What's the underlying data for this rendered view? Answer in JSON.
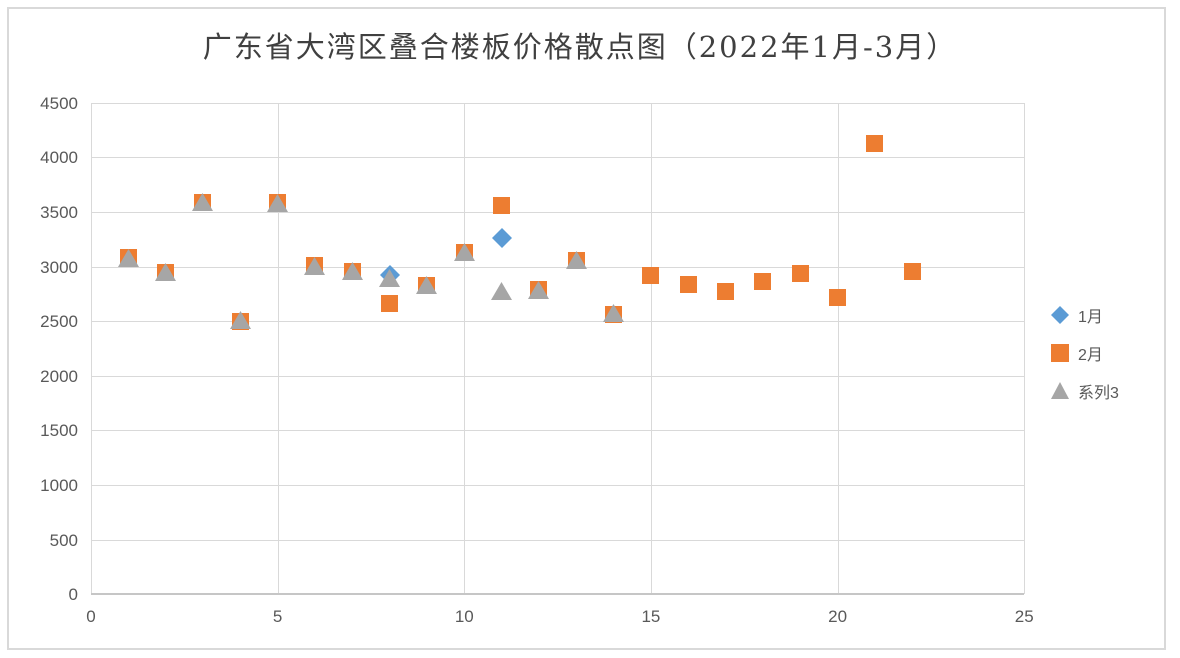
{
  "title": "广东省大湾区叠合楼板价格散点图（2022年1月-3月）",
  "colors": {
    "series1_blue": "#5B9BD5",
    "series2_orange": "#ED7D31",
    "series3_gray": "#A6A6A6",
    "axis_text": "#595959",
    "gridline": "#D9D9D9"
  },
  "legend": [
    {
      "label": "1月",
      "marker": "diamond",
      "color": "#5B9BD5"
    },
    {
      "label": "2月",
      "marker": "square",
      "color": "#ED7D31"
    },
    {
      "label": "系列3",
      "marker": "triangle",
      "color": "#A6A6A6"
    }
  ],
  "chart_data": {
    "type": "scatter",
    "title": "广东省大湾区叠合楼板价格散点图（2022年1月-3月）",
    "xlabel": "",
    "ylabel": "",
    "xlim": [
      0,
      25
    ],
    "ylim": [
      0,
      4500
    ],
    "x_ticks": [
      0,
      5,
      10,
      15,
      20,
      25
    ],
    "y_ticks": [
      0,
      500,
      1000,
      1500,
      2000,
      2500,
      3000,
      3500,
      4000,
      4500
    ],
    "grid": true,
    "legend_position": "right",
    "series": [
      {
        "name": "1月",
        "marker": "diamond",
        "color": "#5B9BD5",
        "points": [
          [
            8,
            2920
          ],
          [
            11,
            3260
          ]
        ]
      },
      {
        "name": "2月",
        "marker": "square",
        "color": "#ED7D31",
        "points": [
          [
            1,
            3080
          ],
          [
            2,
            2950
          ],
          [
            3,
            3590
          ],
          [
            4,
            2500
          ],
          [
            5,
            3590
          ],
          [
            6,
            3010
          ],
          [
            7,
            2960
          ],
          [
            8,
            2660
          ],
          [
            9,
            2830
          ],
          [
            10,
            3130
          ],
          [
            11,
            3560
          ],
          [
            12,
            2790
          ],
          [
            13,
            3060
          ],
          [
            14,
            2560
          ],
          [
            15,
            2920
          ],
          [
            16,
            2840
          ],
          [
            17,
            2770
          ],
          [
            18,
            2860
          ],
          [
            19,
            2940
          ],
          [
            20,
            2720
          ],
          [
            21,
            4130
          ],
          [
            22,
            2960
          ]
        ]
      },
      {
        "name": "系列3",
        "marker": "triangle",
        "color": "#A6A6A6",
        "points": [
          [
            1,
            3080
          ],
          [
            2,
            2950
          ],
          [
            3,
            3590
          ],
          [
            4,
            2510
          ],
          [
            5,
            3580
          ],
          [
            6,
            3010
          ],
          [
            7,
            2960
          ],
          [
            8,
            2900
          ],
          [
            9,
            2830
          ],
          [
            10,
            3130
          ],
          [
            11,
            2780
          ],
          [
            12,
            2790
          ],
          [
            13,
            3060
          ],
          [
            14,
            2580
          ]
        ]
      }
    ]
  }
}
